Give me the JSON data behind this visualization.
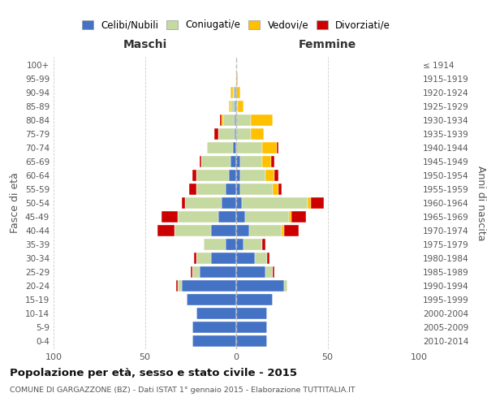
{
  "age_groups": [
    "0-4",
    "5-9",
    "10-14",
    "15-19",
    "20-24",
    "25-29",
    "30-34",
    "35-39",
    "40-44",
    "45-49",
    "50-54",
    "55-59",
    "60-64",
    "65-69",
    "70-74",
    "75-79",
    "80-84",
    "85-89",
    "90-94",
    "95-99",
    "100+"
  ],
  "birth_years": [
    "2010-2014",
    "2005-2009",
    "2000-2004",
    "1995-1999",
    "1990-1994",
    "1985-1989",
    "1980-1984",
    "1975-1979",
    "1970-1974",
    "1965-1969",
    "1960-1964",
    "1955-1959",
    "1950-1954",
    "1945-1949",
    "1940-1944",
    "1935-1939",
    "1930-1934",
    "1925-1929",
    "1920-1924",
    "1915-1919",
    "≤ 1914"
  ],
  "maschi": {
    "celibi": [
      24,
      24,
      22,
      27,
      30,
      20,
      14,
      6,
      14,
      10,
      8,
      6,
      4,
      3,
      2,
      1,
      1,
      1,
      1,
      0,
      0
    ],
    "coniugati": [
      0,
      0,
      0,
      0,
      2,
      4,
      8,
      12,
      20,
      22,
      20,
      16,
      18,
      16,
      14,
      9,
      6,
      2,
      1,
      0,
      0
    ],
    "vedovi": [
      0,
      0,
      0,
      0,
      0,
      0,
      0,
      0,
      0,
      0,
      0,
      0,
      0,
      0,
      0,
      0,
      1,
      1,
      1,
      0,
      0
    ],
    "divorziati": [
      0,
      0,
      0,
      0,
      1,
      1,
      1,
      0,
      9,
      9,
      2,
      4,
      2,
      1,
      0,
      2,
      1,
      0,
      0,
      0,
      0
    ]
  },
  "femmine": {
    "nubili": [
      17,
      17,
      17,
      20,
      26,
      16,
      10,
      4,
      7,
      5,
      3,
      2,
      2,
      2,
      0,
      0,
      0,
      0,
      0,
      0,
      0
    ],
    "coniugate": [
      0,
      0,
      0,
      0,
      2,
      4,
      7,
      10,
      18,
      24,
      36,
      18,
      14,
      12,
      14,
      8,
      8,
      1,
      0,
      0,
      0
    ],
    "vedove": [
      0,
      0,
      0,
      0,
      0,
      0,
      0,
      0,
      1,
      1,
      2,
      3,
      5,
      5,
      8,
      7,
      12,
      3,
      2,
      1,
      0
    ],
    "divorziate": [
      0,
      0,
      0,
      0,
      0,
      1,
      1,
      2,
      8,
      8,
      7,
      2,
      2,
      2,
      1,
      0,
      0,
      0,
      0,
      0,
      0
    ]
  },
  "colors": {
    "celibi": "#4472c4",
    "coniugati": "#c5d9a0",
    "vedovi": "#ffc000",
    "divorziati": "#cc0000"
  },
  "xlim": 100,
  "title": "Popolazione per età, sesso e stato civile - 2015",
  "subtitle": "COMUNE DI GARGAZZONE (BZ) - Dati ISTAT 1° gennaio 2015 - Elaborazione TUTTITALIA.IT",
  "ylabel_left": "Fasce di età",
  "ylabel_right": "Anni di nascita",
  "xlabel_maschi": "Maschi",
  "xlabel_femmine": "Femmine",
  "legend_labels": [
    "Celibi/Nubili",
    "Coniugati/e",
    "Vedovi/e",
    "Divorziati/e"
  ],
  "bg_color": "#ffffff",
  "grid_color": "#cccccc"
}
